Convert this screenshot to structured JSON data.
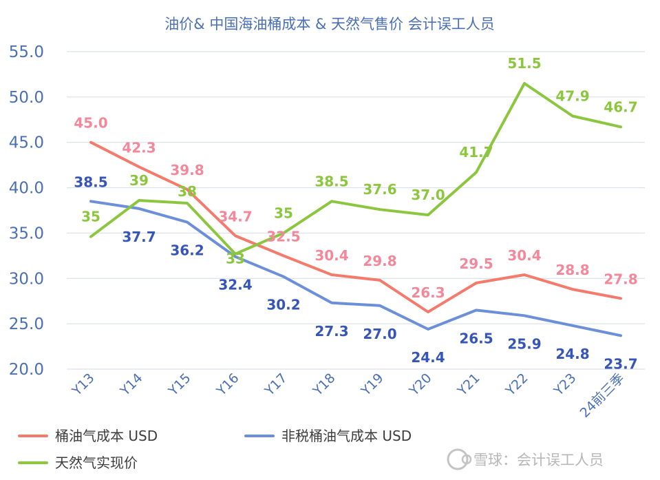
{
  "chart_data": {
    "type": "line",
    "title": "油价& 中国海油桶成本 & 天然气售价 会计误工人员",
    "categories": [
      "Y13",
      "Y14",
      "Y15",
      "Y16",
      "Y17",
      "Y18",
      "Y19",
      "Y20",
      "Y21",
      "Y22",
      "Y23",
      "24前三季"
    ],
    "ylim": [
      20,
      55
    ],
    "yticks": [
      "55.0",
      "50.0",
      "45.0",
      "40.0",
      "35.0",
      "30.0",
      "25.0",
      "20.0"
    ],
    "grid": true,
    "legend_position": "bottom",
    "series": [
      {
        "name": "桶油气成本 USD",
        "color": "#f47b6b",
        "label_color": "#f2889a",
        "values": [
          45.0,
          42.3,
          39.8,
          34.7,
          32.5,
          30.4,
          29.8,
          26.3,
          29.5,
          30.4,
          28.8,
          27.8
        ],
        "labels": [
          "45.0",
          "42.3",
          "39.8",
          "34.7",
          "32.5",
          "30.4",
          "29.8",
          "26.3",
          "29.5",
          "30.4",
          "28.8",
          "27.8"
        ]
      },
      {
        "name": "非税桶油气成本 USD",
        "color": "#6b8fd9",
        "label_color": "#3555b8",
        "values": [
          38.5,
          37.7,
          36.2,
          32.4,
          30.2,
          27.3,
          27.0,
          24.4,
          26.5,
          25.9,
          24.8,
          23.7
        ],
        "labels": [
          "38.5",
          "37.7",
          "36.2",
          "32.4",
          "30.2",
          "27.3",
          "27.0",
          "24.4",
          "26.5",
          "25.9",
          "24.8",
          "23.7"
        ]
      },
      {
        "name": "天然气实现价",
        "color": "#8cc63f",
        "label_color": "#8cc63f",
        "values": [
          34.6,
          38.6,
          38.3,
          32.7,
          35.0,
          38.5,
          37.6,
          37.0,
          41.7,
          51.5,
          47.9,
          46.7
        ],
        "labels": [
          "35",
          "39",
          "38",
          "33",
          "35",
          "38.5",
          "37.6",
          "37.0",
          "41.7",
          "51.5",
          "47.9",
          "46.7"
        ]
      }
    ]
  },
  "watermark": {
    "icon": "snowball-logo-icon",
    "text": "雪球：会计误工人员"
  }
}
